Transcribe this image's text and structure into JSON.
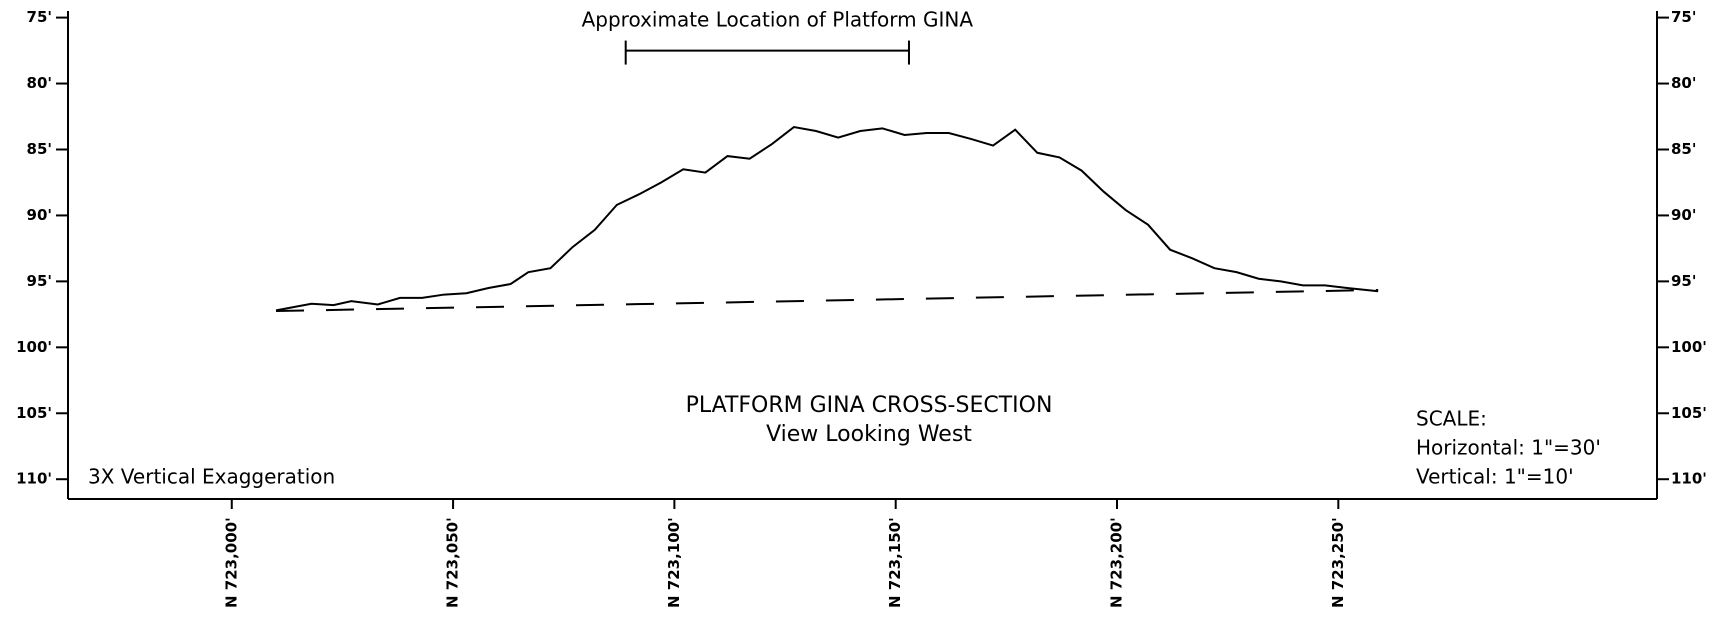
{
  "chart_data": {
    "type": "line",
    "title": "PLATFORM GINA CROSS-SECTION",
    "subtitle": "View Looking West",
    "annotation": "Approximate Location of Platform GINA",
    "annotation_range": [
      723089,
      723153
    ],
    "annotation_depth": 77.5,
    "note": "3X Vertical Exaggeration",
    "scale_lines": [
      "SCALE:",
      "Horizontal:  1\"=30'",
      "Vertical:  1\"=10'"
    ],
    "inverted_y": true,
    "xlim": [
      722963,
      723322
    ],
    "ylim": [
      74.5,
      111.5
    ],
    "xticks": [
      {
        "value": 723000,
        "label": "N 723,000'"
      },
      {
        "value": 723050,
        "label": "N 723,050'"
      },
      {
        "value": 723100,
        "label": "N 723,100'"
      },
      {
        "value": 723150,
        "label": "N 723,150'"
      },
      {
        "value": 723200,
        "label": "N 723,200'"
      },
      {
        "value": 723250,
        "label": "N 723,250'"
      }
    ],
    "yticks": [
      {
        "value": 75,
        "label": "75'"
      },
      {
        "value": 80,
        "label": "80'"
      },
      {
        "value": 85,
        "label": "85'"
      },
      {
        "value": 90,
        "label": "90'"
      },
      {
        "value": 95,
        "label": "95'"
      },
      {
        "value": 100,
        "label": "100'"
      },
      {
        "value": 105,
        "label": "105'"
      },
      {
        "value": 110,
        "label": "110'"
      }
    ],
    "series": [
      {
        "color": "#000000",
        "line_style": "solid",
        "x": [
          723010,
          723018,
          723023,
          723027,
          723033,
          723038,
          723043,
          723048,
          723053,
          723058,
          723063,
          723067,
          723072,
          723077,
          723082,
          723087,
          723092,
          723097,
          723102,
          723107,
          723112,
          723117,
          723122,
          723127,
          723132,
          723137,
          723142,
          723147,
          723152,
          723157,
          723162,
          723167,
          723172,
          723177,
          723182,
          723187,
          723192,
          723197,
          723202,
          723207,
          723212,
          723217,
          723222,
          723227,
          723232,
          723237,
          723242,
          723247,
          723252,
          723259
        ],
        "values": [
          97.2,
          96.7,
          96.8,
          96.5,
          96.75,
          96.25,
          96.25,
          96.0,
          95.9,
          95.5,
          95.2,
          94.3,
          94.0,
          92.4,
          91.1,
          89.2,
          88.4,
          87.5,
          86.5,
          86.75,
          85.5,
          85.7,
          84.6,
          83.3,
          83.6,
          84.1,
          83.6,
          83.4,
          83.9,
          83.75,
          83.75,
          84.2,
          84.7,
          83.5,
          85.25,
          85.6,
          86.6,
          88.2,
          89.6,
          90.7,
          92.6,
          93.25,
          94.0,
          94.3,
          94.8,
          95.0,
          95.3,
          95.3,
          95.5,
          95.75
        ]
      },
      {
        "color": "#000000",
        "line_style": "dashed",
        "x": [
          723010,
          723259
        ],
        "values": [
          97.25,
          95.65
        ]
      }
    ]
  }
}
